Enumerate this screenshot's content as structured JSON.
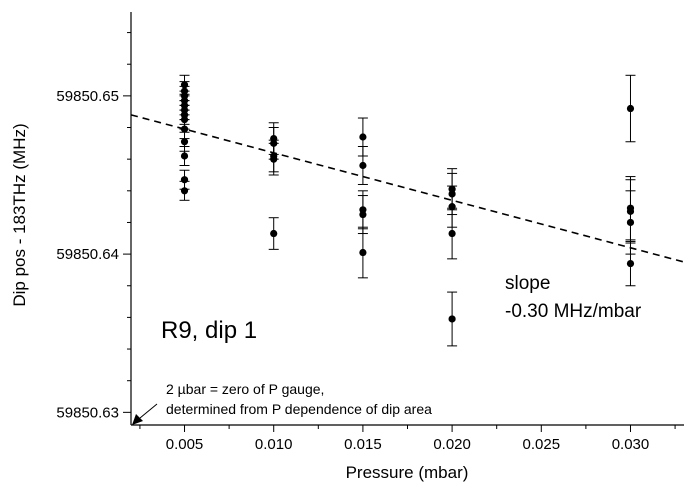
{
  "chart_data": {
    "type": "scatter",
    "title": "",
    "xlabel": "Pressure (mbar)",
    "ylabel": "Dip pos - 183THz (MHz)",
    "xlim": [
      0.002,
      0.033
    ],
    "ylim": [
      59850.6292,
      59850.6553
    ],
    "x_ticks": [
      0.005,
      0.01,
      0.015,
      0.02,
      0.025,
      0.03
    ],
    "x_tick_labels": [
      "0.005",
      "0.010",
      "0.015",
      "0.020",
      "0.025",
      "0.030"
    ],
    "y_ticks": [
      59850.63,
      59850.64,
      59850.65
    ],
    "y_tick_labels": [
      "59850.63",
      "59850.64",
      "59850.65"
    ],
    "grid": false,
    "legend": "none",
    "series": [
      {
        "points": [
          {
            "x": 0.005,
            "y": 59850.6507,
            "err": 0.0006
          },
          {
            "x": 0.005,
            "y": 59850.6503,
            "err": 0.0006
          },
          {
            "x": 0.005,
            "y": 59850.65,
            "err": 0.0006
          },
          {
            "x": 0.005,
            "y": 59850.6497,
            "err": 0.0006
          },
          {
            "x": 0.005,
            "y": 59850.6494,
            "err": 0.0006
          },
          {
            "x": 0.005,
            "y": 59850.6491,
            "err": 0.0006
          },
          {
            "x": 0.005,
            "y": 59850.6488,
            "err": 0.0006
          },
          {
            "x": 0.005,
            "y": 59850.6485,
            "err": 0.0006
          },
          {
            "x": 0.005,
            "y": 59850.6479,
            "err": 0.0006
          },
          {
            "x": 0.005,
            "y": 59850.6471,
            "err": 0.0006
          },
          {
            "x": 0.005,
            "y": 59850.6462,
            "err": 0.0006
          },
          {
            "x": 0.005,
            "y": 59850.6447,
            "err": 0.0006
          },
          {
            "x": 0.005,
            "y": 59850.644,
            "err": 0.0006
          },
          {
            "x": 0.01,
            "y": 59850.6473,
            "err": 0.001
          },
          {
            "x": 0.01,
            "y": 59850.647,
            "err": 0.001
          },
          {
            "x": 0.01,
            "y": 59850.6462,
            "err": 0.001
          },
          {
            "x": 0.01,
            "y": 59850.646,
            "err": 0.001
          },
          {
            "x": 0.01,
            "y": 59850.6413,
            "err": 0.001
          },
          {
            "x": 0.015,
            "y": 59850.6474,
            "err": 0.0012
          },
          {
            "x": 0.015,
            "y": 59850.6456,
            "err": 0.0012
          },
          {
            "x": 0.015,
            "y": 59850.6428,
            "err": 0.0012
          },
          {
            "x": 0.015,
            "y": 59850.6425,
            "err": 0.0012
          },
          {
            "x": 0.015,
            "y": 59850.6401,
            "err": 0.0016
          },
          {
            "x": 0.02,
            "y": 59850.6441,
            "err": 0.0013
          },
          {
            "x": 0.02,
            "y": 59850.6438,
            "err": 0.0013
          },
          {
            "x": 0.02,
            "y": 59850.643,
            "err": 0.0013
          },
          {
            "x": 0.02,
            "y": 59850.6413,
            "err": 0.0016
          },
          {
            "x": 0.02,
            "y": 59850.6359,
            "err": 0.0017
          },
          {
            "x": 0.03,
            "y": 59850.6492,
            "err": 0.0021
          },
          {
            "x": 0.03,
            "y": 59850.6429,
            "err": 0.002
          },
          {
            "x": 0.03,
            "y": 59850.6427,
            "err": 0.002
          },
          {
            "x": 0.03,
            "y": 59850.642,
            "err": 0.002
          },
          {
            "x": 0.03,
            "y": 59850.6394,
            "err": 0.0014
          }
        ]
      }
    ],
    "fit_line": {
      "style": "dashed",
      "points": [
        [
          0.002,
          59850.6488
        ],
        [
          0.033,
          59850.6395
        ]
      ]
    },
    "annotations": {
      "slope_label": "slope",
      "slope_value": "-0.30 MHz/mbar",
      "dataset_label": "R9, dip 1",
      "note_line1": "2 µbar = zero of P gauge,",
      "note_line2": "determined from P dependence of dip area"
    }
  }
}
